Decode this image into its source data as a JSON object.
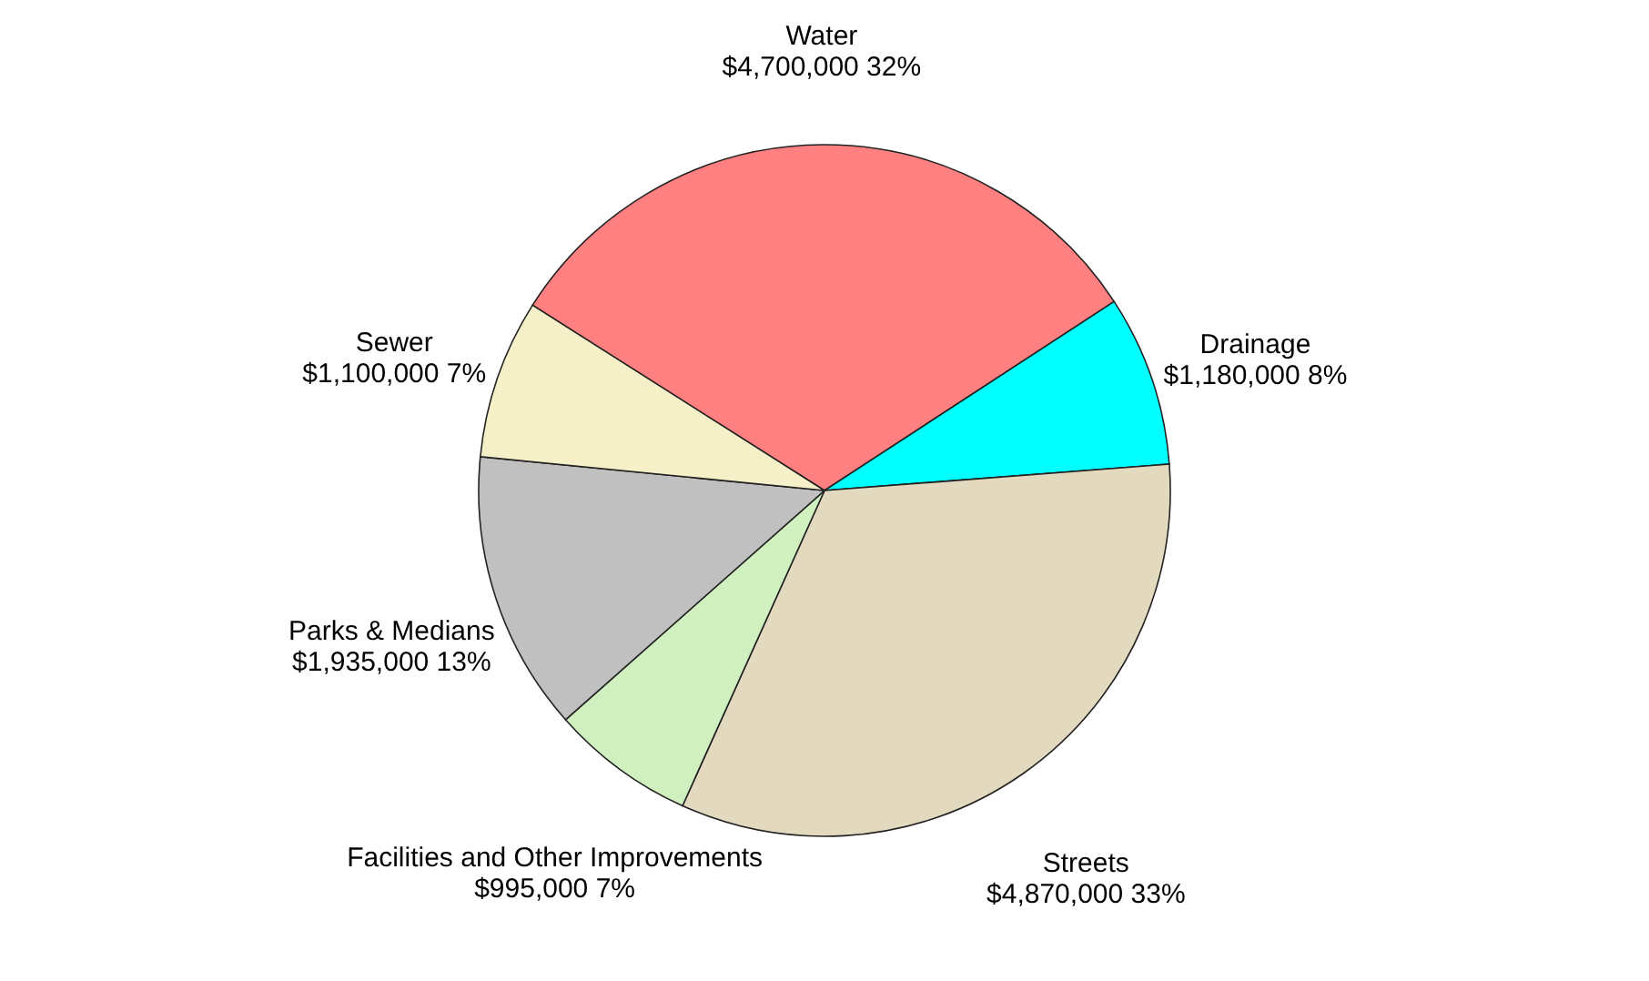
{
  "chart_data": {
    "type": "pie",
    "categories": [
      "Water",
      "Drainage",
      "Streets",
      "Facilities and Other Improvements",
      "Parks & Medians",
      "Sewer"
    ],
    "values": [
      4700000,
      1180000,
      4870000,
      995000,
      1935000,
      1100000
    ],
    "value_labels": [
      "$4,700,000 32%",
      "$1,180,000 8%",
      "$4,870,000 33%",
      "$995,000 7%",
      "$1,935,000 13%",
      "$1,100,000 7%"
    ],
    "colors": [
      "#ff8080",
      "#00ffff",
      "#e3d9bf",
      "#d0f0c0",
      "#c0c0c0",
      "#f5f0c8"
    ],
    "legend": false
  }
}
